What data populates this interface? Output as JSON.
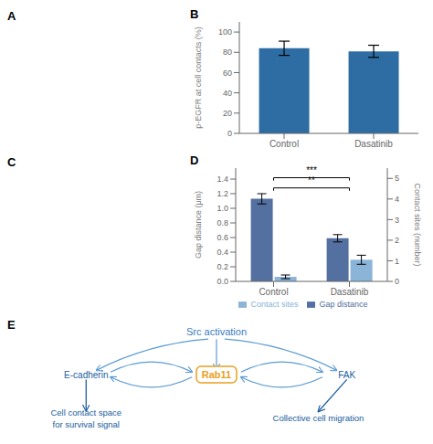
{
  "chart_data": [
    {
      "type": "bar",
      "title": "B",
      "annotations": [
        "A"
      ],
      "categories": [
        "Control",
        "Dasatinib"
      ],
      "values": [
        84,
        81
      ],
      "errors": [
        7,
        6
      ],
      "color": "#2e6da4",
      "ylabel": "p-EGFR at cell contacts (%)",
      "ylim": [
        0,
        110
      ],
      "yticks": [
        0,
        20,
        40,
        60,
        80,
        100
      ],
      "grid": false
    },
    {
      "type": "bar",
      "title": "D",
      "annotations": [
        "C",
        "***",
        "**"
      ],
      "categories": [
        "Control",
        "Dasatinib"
      ],
      "series": [
        {
          "name": "Gap distance",
          "color": "#5470a0",
          "values": [
            1.13,
            0.59
          ],
          "errors": [
            0.07,
            0.05
          ]
        },
        {
          "name": "Contact sites",
          "color": "#8ab4d8",
          "values": [
            0.22,
            1.05
          ],
          "errors": [
            0.09,
            0.22
          ],
          "axis": "y2"
        }
      ],
      "ylabel": "Gap distance (μm)",
      "y2label": "Contact sites (number)",
      "ylim": [
        0,
        1.55
      ],
      "yticks": [
        {
          "value": 0.0,
          "label": "0.0"
        },
        0.2,
        0.4,
        0.6,
        0.8,
        {
          "value": 1.0,
          "label": "1.0"
        },
        1.2,
        1.4
      ],
      "y2lim": [
        0,
        5.5
      ],
      "y2ticks": [
        0,
        1,
        2,
        3,
        4,
        5
      ],
      "legend": "bottom",
      "grid": false
    },
    {
      "type": "diagram",
      "title": "E",
      "annotations": [
        "Src activation",
        "E-cadherin",
        "Rab11",
        "FAK",
        "Cell contact space\nfor survival signal",
        "Collective cell migration"
      ],
      "colors": [
        "#3b7bbf",
        "#2060a0",
        "#e8a020",
        "#2060a0",
        "#2060a0",
        "#2060a0"
      ],
      "color": "#5b9bd5"
    }
  ]
}
